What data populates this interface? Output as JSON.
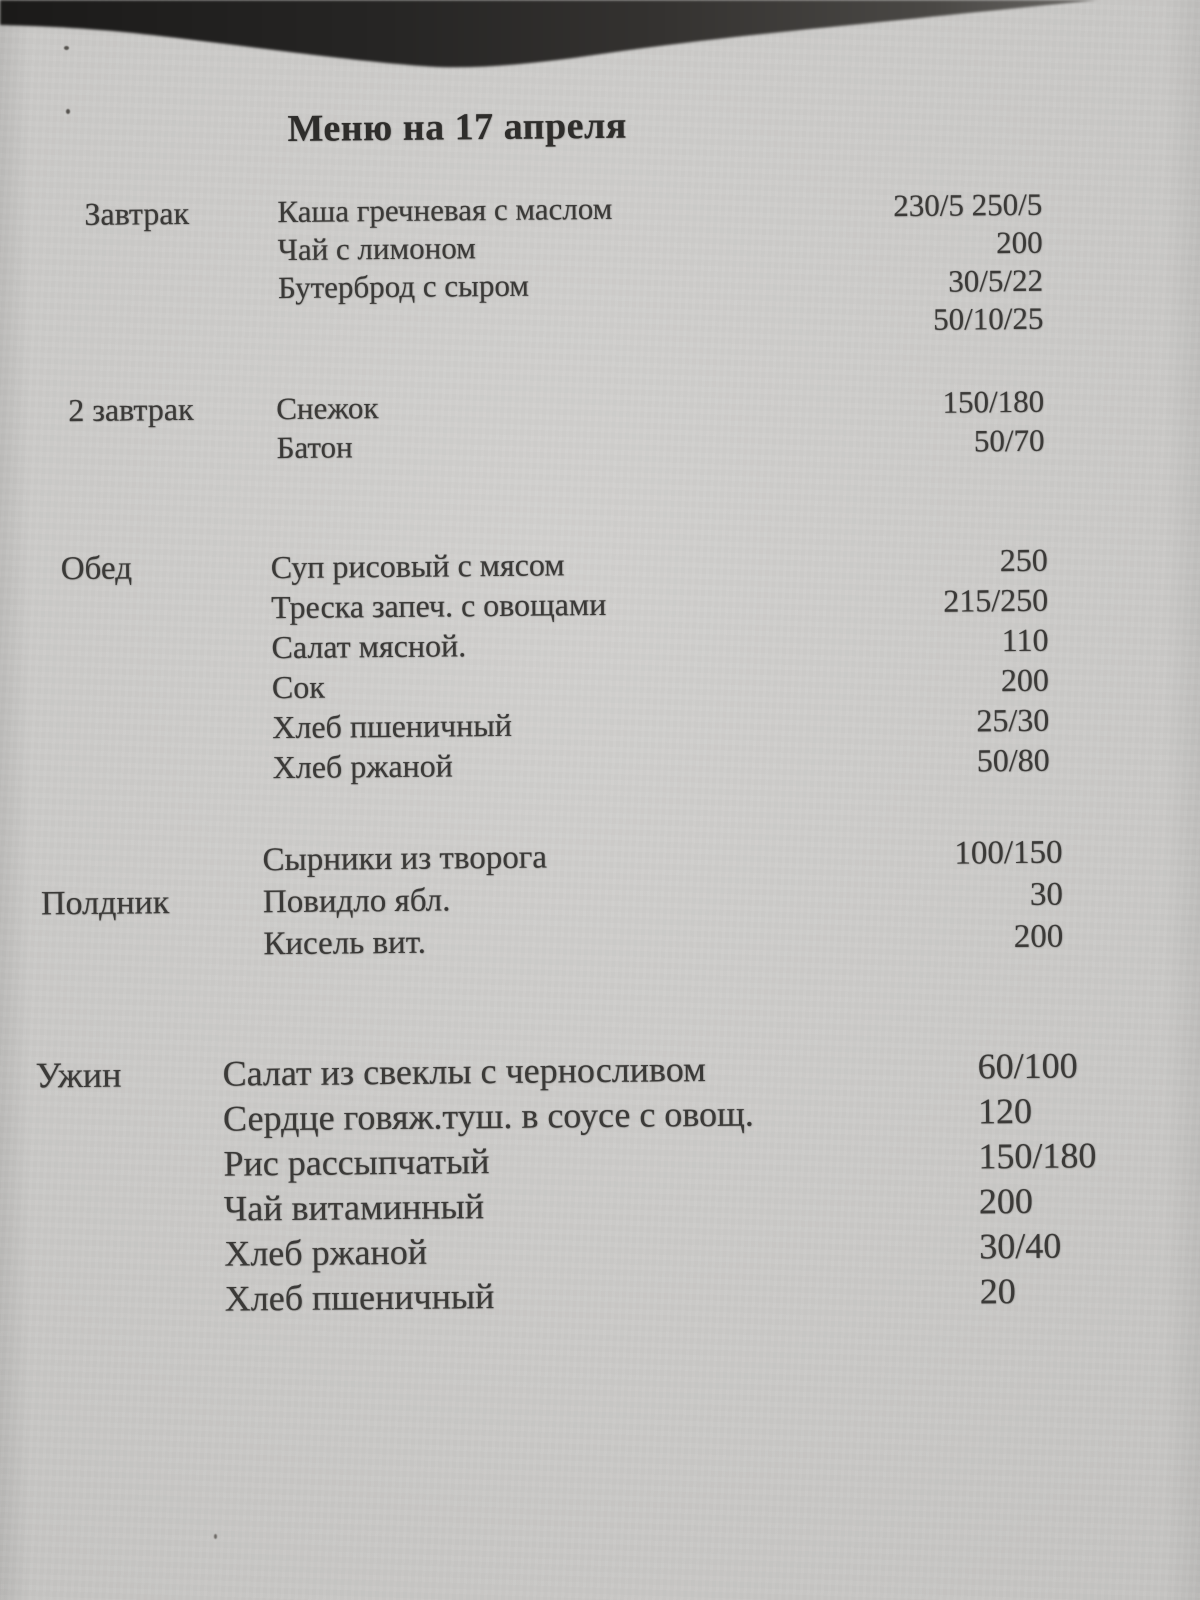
{
  "page": {
    "title": "Меню на 17 апреля"
  },
  "menu": {
    "sections": [
      {
        "label": "Завтрак",
        "rows": [
          {
            "item": "Каша гречневая с маслом",
            "value": "230/5 250/5"
          },
          {
            "item": "Чай с лимоном",
            "value": "200"
          },
          {
            "item": "Бутерброд с сыром",
            "value": "30/5/22"
          },
          {
            "item": "",
            "value": "50/10/25"
          }
        ]
      },
      {
        "label": "2 завтрак",
        "rows": [
          {
            "item": "Снежок",
            "value": "150/180"
          },
          {
            "item": "Батон",
            "value": "50/70"
          }
        ]
      },
      {
        "label": "Обед",
        "rows": [
          {
            "item": "Суп рисовый с мясом",
            "value": "250"
          },
          {
            "item": "Треска запеч. с овощами",
            "value": "215/250"
          },
          {
            "item": "Салат мясной.",
            "value": "110"
          },
          {
            "item": "Сок",
            "value": "200"
          },
          {
            "item": "Хлеб пшеничный",
            "value": "25/30"
          },
          {
            "item": "Хлеб ржаной",
            "value": "50/80"
          }
        ]
      },
      {
        "label": "Полдник",
        "rows": [
          {
            "item": "Сырники из творога",
            "value": "100/150"
          },
          {
            "item": "Повидло ябл.",
            "value": "30"
          },
          {
            "item": "Кисель вит.",
            "value": "200"
          }
        ]
      },
      {
        "label": "Ужин",
        "rows": [
          {
            "item": "Салат из свеклы с черносливом",
            "value": "60/100"
          },
          {
            "item": "Сердце говяж.туш. в соусе с овощ.",
            "value": "120"
          },
          {
            "item": "Рис рассыпчатый",
            "value": "150/180"
          },
          {
            "item": "Чай витаминный",
            "value": "200"
          },
          {
            "item": "Хлеб ржаной",
            "value": "30/40"
          },
          {
            "item": "Хлеб пшеничный",
            "value": "20"
          }
        ]
      }
    ]
  }
}
